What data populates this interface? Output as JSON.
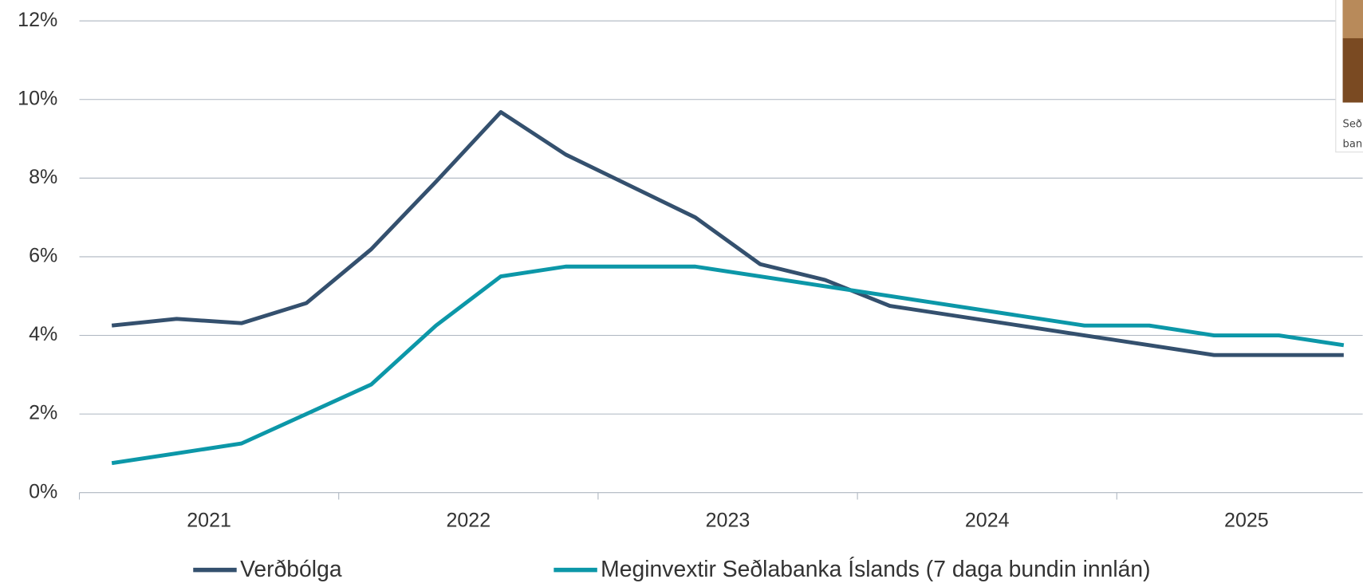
{
  "chart_data": {
    "type": "line",
    "categories": [
      null,
      null,
      null,
      null,
      null,
      null,
      null,
      null,
      null,
      null,
      null,
      null,
      null,
      null,
      null,
      null,
      null,
      null,
      null,
      null
    ],
    "year_labels": [
      "2021",
      "2022",
      "2023",
      "2024",
      "2025"
    ],
    "series": [
      {
        "name": "Verðbólga",
        "color": "#34506e",
        "values": [
          4.25,
          4.42,
          4.31,
          4.82,
          6.19,
          7.91,
          9.68,
          8.6,
          7.8,
          7.0,
          5.81,
          5.41,
          4.75,
          4.5,
          4.25,
          4.0,
          3.75,
          3.5,
          3.5,
          3.5
        ]
      },
      {
        "name": "Meginvextir Seðlabanka Íslands (7 daga bundin innlán)",
        "color": "#0c97a8",
        "values": [
          0.75,
          1.0,
          1.25,
          2.0,
          2.75,
          4.25,
          5.5,
          5.75,
          5.75,
          5.75,
          5.5,
          5.25,
          5.0,
          4.75,
          4.5,
          4.25,
          4.25,
          4.0,
          4.0,
          3.75
        ]
      }
    ],
    "ylim": [
      0,
      12
    ],
    "yticks": [
      {
        "value": 0,
        "label": "0%"
      },
      {
        "value": 2,
        "label": "2%"
      },
      {
        "value": 4,
        "label": "4%"
      },
      {
        "value": 6,
        "label": "6%"
      },
      {
        "value": 8,
        "label": "8%"
      },
      {
        "value": 10,
        "label": "10%"
      },
      {
        "value": 12,
        "label": "12%"
      }
    ],
    "grid": true,
    "legend": "bottom"
  },
  "overlay": {
    "caption": [
      "Seð",
      "ban"
    ]
  }
}
